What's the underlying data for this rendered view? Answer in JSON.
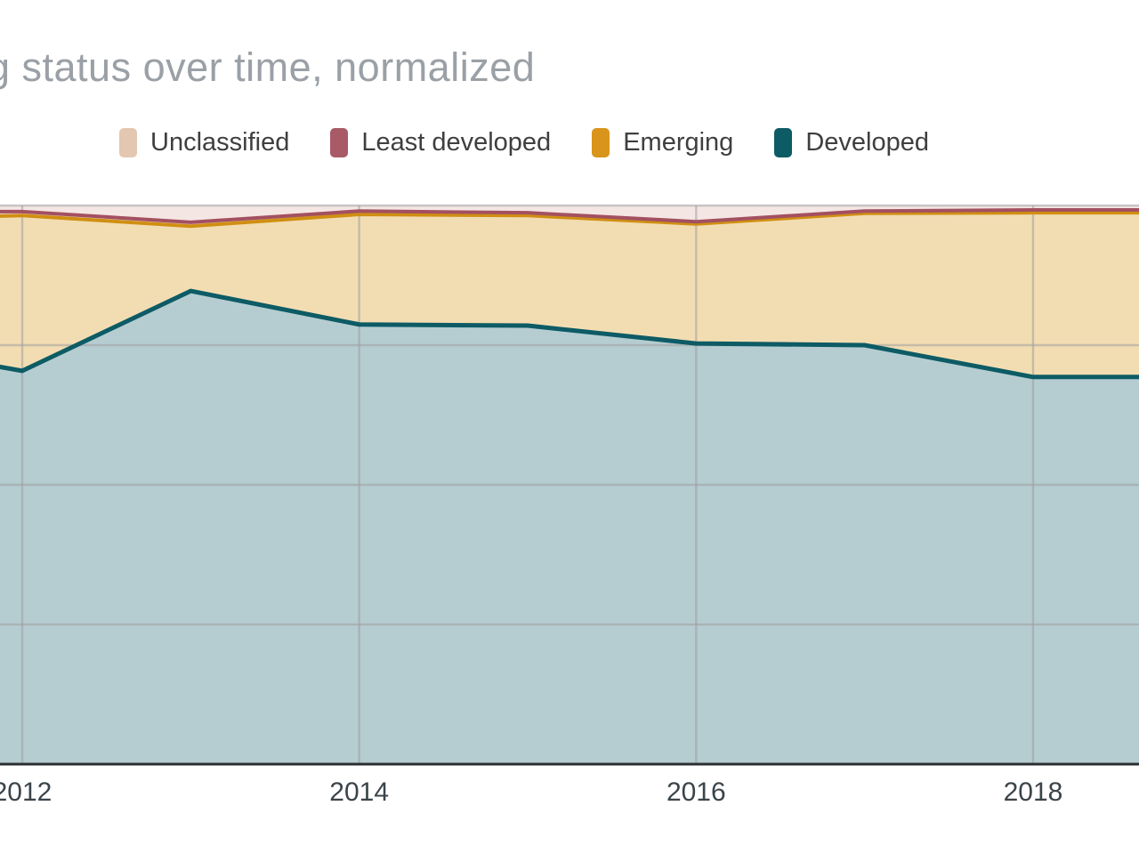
{
  "header": {
    "title": "g status over time, normalized",
    "title_color": "#9aa0a6",
    "note": "title is cropped at the left edge of the screenshot"
  },
  "legend": {
    "items": [
      {
        "label": "Unclassified",
        "color": "#e4c7b0"
      },
      {
        "label": "Least developed",
        "color": "#a85a66"
      },
      {
        "label": "Emerging",
        "color": "#d9941c"
      },
      {
        "label": "Developed",
        "color": "#0d5b65"
      }
    ]
  },
  "chart_data": {
    "type": "area",
    "stacked": true,
    "normalized": true,
    "title": "g status over time, normalized",
    "xlabel": "",
    "ylabel": "",
    "ylim": [
      0,
      100
    ],
    "x": [
      2011.85,
      2012,
      2013,
      2014,
      2015,
      2016,
      2017,
      2018,
      2018.65
    ],
    "x_ticks": [
      {
        "year": 2012,
        "label": "2012"
      },
      {
        "year": 2014,
        "label": "2014"
      },
      {
        "year": 2016,
        "label": "2016"
      },
      {
        "year": 2018,
        "label": "2018"
      }
    ],
    "gridline_pcts": [
      25,
      50,
      75,
      100
    ],
    "legend_position": "top",
    "series_bottom_to_top": [
      {
        "name": "Developed",
        "line_color": "#0d5b65",
        "fill_color": "#b5cdd1",
        "line_width": 5,
        "cum_pct": [
          71.2,
          70.4,
          84.7,
          78.7,
          78.5,
          75.3,
          75.0,
          69.3,
          69.3
        ]
      },
      {
        "name": "Emerging",
        "line_color": "#d08f13",
        "fill_color": "#f2ddb2",
        "line_width": 4,
        "cum_pct": [
          98.1,
          98.2,
          96.3,
          98.4,
          98.2,
          96.7,
          98.6,
          98.7,
          98.7
        ]
      },
      {
        "name": "Least developed",
        "line_color": "#a35060",
        "fill_color": "#eed9da",
        "line_width": 4,
        "cum_pct": [
          98.9,
          98.9,
          97.0,
          99.0,
          98.7,
          97.1,
          99.0,
          99.2,
          99.2
        ]
      },
      {
        "name": "Unclassified",
        "line_color": null,
        "fill_color": "#f4e6e3",
        "line_width": 0,
        "cum_pct": [
          100,
          100,
          100,
          100,
          100,
          100,
          100,
          100,
          100
        ]
      }
    ],
    "axis_color": "#2b2f31",
    "gridline_color": "#9e9e9e"
  }
}
